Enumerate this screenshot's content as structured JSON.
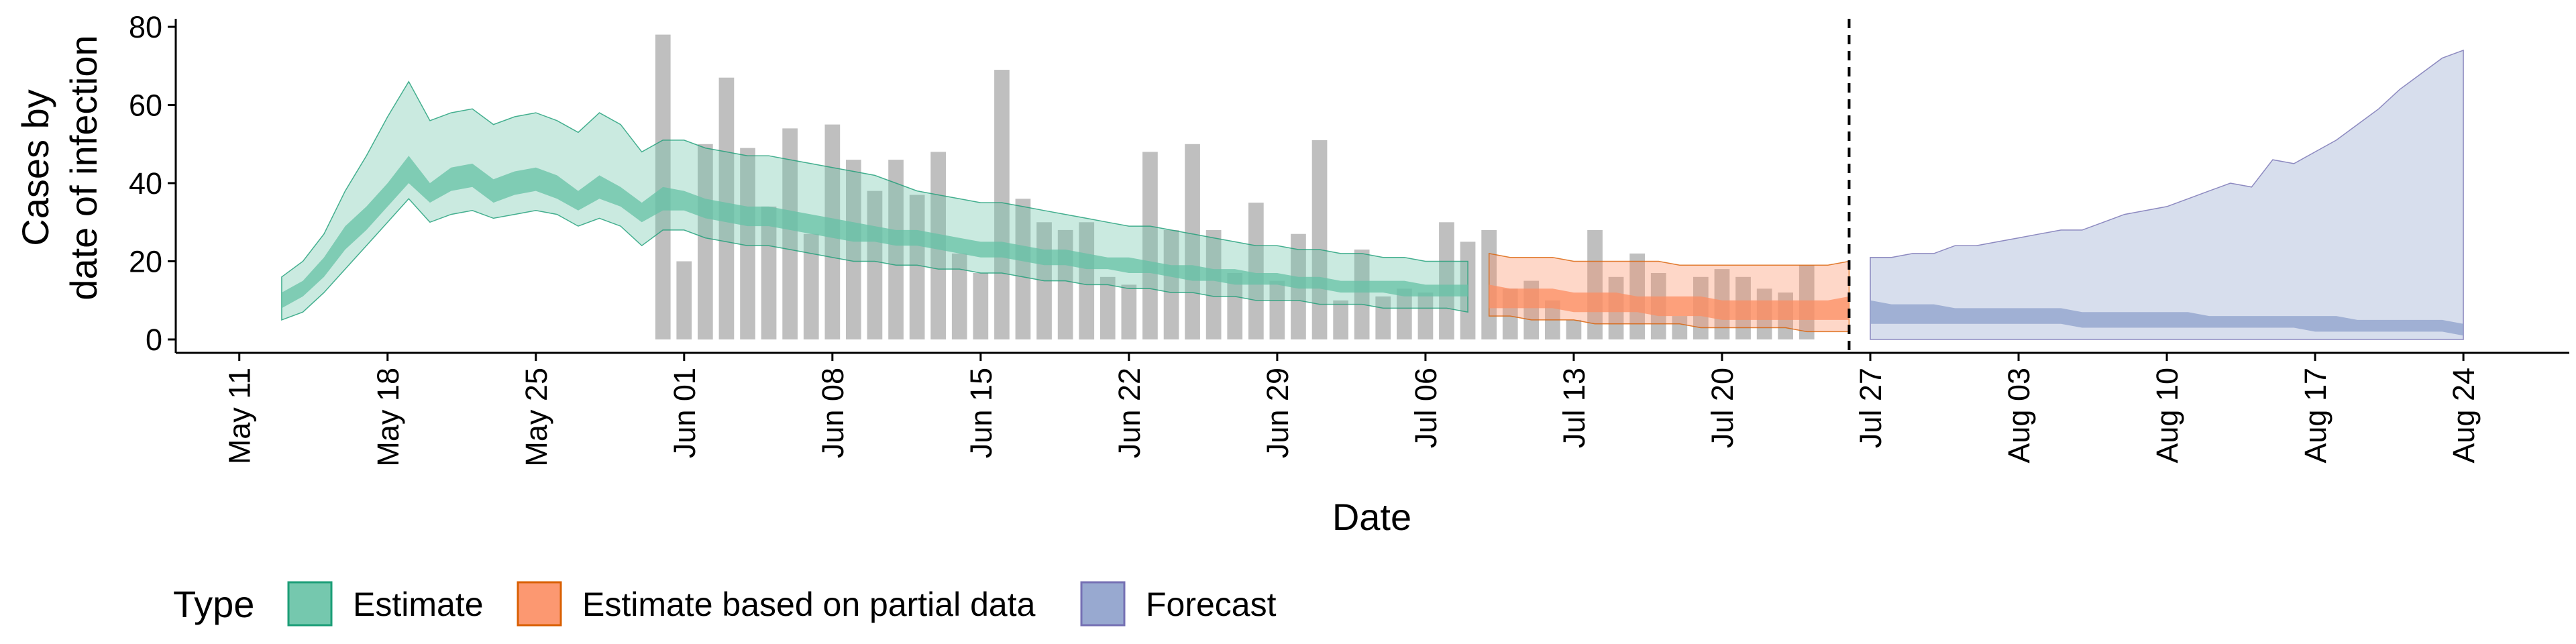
{
  "chart_data": {
    "type": "area",
    "xlabel": "Date",
    "ylabel_line1": "Cases by",
    "ylabel_line2": "date of infection",
    "ylim": [
      0,
      82
    ],
    "y_ticks": [
      0,
      20,
      40,
      60,
      80
    ],
    "x_range": [
      "2020-05-08",
      "2020-08-29"
    ],
    "x_ticks": [
      {
        "date": "2020-05-11",
        "label": "May 11"
      },
      {
        "date": "2020-05-18",
        "label": "May 18"
      },
      {
        "date": "2020-05-25",
        "label": "May 25"
      },
      {
        "date": "2020-06-01",
        "label": "Jun 01"
      },
      {
        "date": "2020-06-08",
        "label": "Jun 08"
      },
      {
        "date": "2020-06-15",
        "label": "Jun 15"
      },
      {
        "date": "2020-06-22",
        "label": "Jun 22"
      },
      {
        "date": "2020-06-29",
        "label": "Jun 29"
      },
      {
        "date": "2020-07-06",
        "label": "Jul 06"
      },
      {
        "date": "2020-07-13",
        "label": "Jul 13"
      },
      {
        "date": "2020-07-20",
        "label": "Jul 20"
      },
      {
        "date": "2020-07-27",
        "label": "Jul 27"
      },
      {
        "date": "2020-08-03",
        "label": "Aug 03"
      },
      {
        "date": "2020-08-10",
        "label": "Aug 10"
      },
      {
        "date": "2020-08-17",
        "label": "Aug 17"
      },
      {
        "date": "2020-08-24",
        "label": "Aug 24"
      }
    ],
    "vline_date": "2020-07-26",
    "observed_cases": {
      "start_date": "2020-05-31",
      "values": [
        78,
        20,
        50,
        67,
        49,
        34,
        54,
        27,
        55,
        46,
        38,
        46,
        37,
        48,
        22,
        17,
        69,
        36,
        30,
        28,
        30,
        16,
        14,
        48,
        28,
        50,
        28,
        17,
        35,
        15,
        27,
        51,
        10,
        23,
        11,
        13,
        12,
        30,
        25,
        28,
        13,
        15,
        10,
        5,
        28,
        16,
        22,
        17,
        6,
        16,
        18,
        16,
        13,
        12,
        19
      ]
    },
    "legend_title": "Type",
    "series": [
      {
        "name": "Estimate",
        "color": "#66c2a5",
        "stroke": "#1b9e77",
        "start_date": "2020-05-13",
        "outer_lower": [
          5,
          7,
          12,
          18,
          24,
          30,
          36,
          30,
          32,
          33,
          31,
          32,
          33,
          32,
          29,
          31,
          29,
          24,
          28,
          28,
          26,
          25,
          24,
          24,
          23,
          22,
          21,
          20,
          20,
          19,
          19,
          18,
          18,
          17,
          17,
          16,
          15,
          15,
          14,
          14,
          13,
          13,
          12,
          12,
          11,
          11,
          10,
          10,
          10,
          9,
          9,
          9,
          8,
          8,
          8,
          8,
          7
        ],
        "inner_lower": [
          8,
          11,
          16,
          23,
          28,
          34,
          40,
          35,
          38,
          39,
          35,
          37,
          38,
          36,
          33,
          36,
          34,
          30,
          33,
          33,
          31,
          30,
          29,
          29,
          28,
          27,
          26,
          25,
          25,
          24,
          24,
          23,
          22,
          21,
          21,
          20,
          19,
          19,
          18,
          18,
          17,
          17,
          16,
          15,
          15,
          14,
          14,
          14,
          13,
          13,
          12,
          12,
          12,
          11,
          11,
          11,
          11
        ],
        "inner_upper": [
          12,
          15,
          21,
          29,
          34,
          40,
          47,
          40,
          44,
          45,
          41,
          43,
          44,
          42,
          38,
          42,
          39,
          35,
          39,
          38,
          36,
          35,
          34,
          34,
          33,
          32,
          31,
          30,
          29,
          28,
          28,
          27,
          26,
          25,
          25,
          24,
          23,
          23,
          22,
          21,
          21,
          20,
          19,
          19,
          18,
          18,
          17,
          17,
          16,
          16,
          15,
          15,
          15,
          15,
          14,
          14,
          14
        ],
        "outer_upper": [
          16,
          20,
          27,
          38,
          47,
          57,
          66,
          56,
          58,
          59,
          55,
          57,
          58,
          56,
          53,
          58,
          55,
          48,
          51,
          51,
          49,
          48,
          47,
          47,
          46,
          45,
          44,
          43,
          42,
          40,
          38,
          37,
          36,
          35,
          35,
          34,
          33,
          32,
          31,
          30,
          29,
          29,
          28,
          27,
          26,
          25,
          24,
          24,
          23,
          23,
          22,
          22,
          21,
          21,
          20,
          20,
          20
        ]
      },
      {
        "name": "Estimate based on partial data",
        "color": "#fc8d62",
        "stroke": "#d95f02",
        "start_date": "2020-07-09",
        "outer_lower": [
          6,
          6,
          5,
          5,
          5,
          4,
          4,
          4,
          4,
          4,
          3,
          3,
          3,
          3,
          3,
          2,
          2,
          2
        ],
        "inner_lower": [
          8,
          8,
          8,
          8,
          7,
          7,
          7,
          7,
          6,
          6,
          6,
          5,
          5,
          5,
          5,
          5,
          5,
          5
        ],
        "inner_upper": [
          14,
          13,
          13,
          13,
          12,
          12,
          12,
          11,
          11,
          11,
          11,
          10,
          10,
          10,
          10,
          10,
          10,
          11
        ],
        "outer_upper": [
          22,
          21,
          21,
          21,
          20,
          20,
          20,
          20,
          20,
          19,
          19,
          19,
          19,
          19,
          19,
          19,
          19,
          20
        ]
      },
      {
        "name": "Forecast",
        "color": "#8da0cb",
        "stroke": "#7570b3",
        "start_date": "2020-07-27",
        "outer_lower": [
          0,
          0,
          0,
          0,
          0,
          0,
          0,
          0,
          0,
          0,
          0,
          0,
          0,
          0,
          0,
          0,
          0,
          0,
          0,
          0,
          0,
          0,
          0,
          0,
          0,
          0,
          0,
          0,
          0
        ],
        "inner_lower": [
          4,
          4,
          4,
          4,
          4,
          4,
          4,
          4,
          4,
          4,
          3,
          3,
          3,
          3,
          3,
          3,
          3,
          3,
          3,
          3,
          3,
          2,
          2,
          2,
          2,
          2,
          2,
          2,
          1
        ],
        "inner_upper": [
          10,
          9,
          9,
          9,
          8,
          8,
          8,
          8,
          8,
          8,
          7,
          7,
          7,
          7,
          7,
          7,
          6,
          6,
          6,
          6,
          6,
          6,
          6,
          5,
          5,
          5,
          5,
          5,
          4
        ],
        "outer_upper": [
          21,
          21,
          22,
          22,
          24,
          24,
          25,
          26,
          27,
          28,
          28,
          30,
          32,
          33,
          34,
          36,
          38,
          40,
          39,
          46,
          45,
          48,
          51,
          55,
          59,
          64,
          68,
          72,
          74
        ]
      }
    ]
  }
}
